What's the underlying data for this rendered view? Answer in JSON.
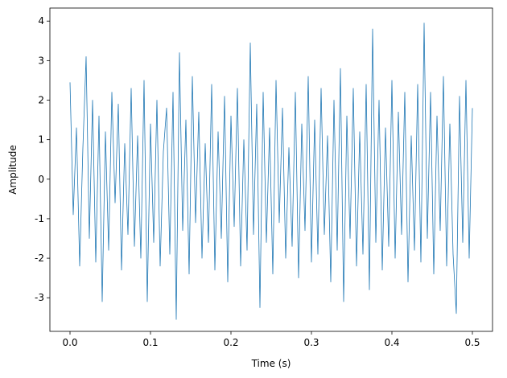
{
  "chart_data": {
    "type": "line",
    "x_label": "Time (s)",
    "y_label": "Amplitude",
    "x": [
      0,
      0.004,
      0.008,
      0.012,
      0.016,
      0.02,
      0.024,
      0.028,
      0.032,
      0.036,
      0.04,
      0.044,
      0.048,
      0.052,
      0.056,
      0.06,
      0.064,
      0.068,
      0.072,
      0.076,
      0.08,
      0.084,
      0.088,
      0.092,
      0.096,
      0.1,
      0.104,
      0.108,
      0.112,
      0.116,
      0.12,
      0.124,
      0.128,
      0.132,
      0.136,
      0.14,
      0.144,
      0.148,
      0.152,
      0.156,
      0.16,
      0.164,
      0.168,
      0.172,
      0.176,
      0.18,
      0.184,
      0.188,
      0.192,
      0.196,
      0.2,
      0.204,
      0.208,
      0.212,
      0.216,
      0.22,
      0.224,
      0.228,
      0.232,
      0.236,
      0.24,
      0.244,
      0.248,
      0.252,
      0.256,
      0.26,
      0.264,
      0.268,
      0.272,
      0.276,
      0.28,
      0.284,
      0.288,
      0.292,
      0.296,
      0.3,
      0.304,
      0.308,
      0.312,
      0.316,
      0.32,
      0.324,
      0.328,
      0.332,
      0.336,
      0.34,
      0.344,
      0.348,
      0.352,
      0.356,
      0.36,
      0.364,
      0.368,
      0.372,
      0.376,
      0.38,
      0.384,
      0.388,
      0.392,
      0.396,
      0.4,
      0.404,
      0.408,
      0.412,
      0.416,
      0.42,
      0.424,
      0.428,
      0.432,
      0.436,
      0.44,
      0.444,
      0.448,
      0.452,
      0.456,
      0.46,
      0.464,
      0.468,
      0.472,
      0.476,
      0.48,
      0.484,
      0.488,
      0.492,
      0.496,
      0.5
    ],
    "series": [
      {
        "color": "#1f77b4",
        "values": [
          2.45,
          -0.9,
          1.3,
          -2.2,
          0.8,
          3.1,
          -1.5,
          2.0,
          -2.1,
          1.6,
          -3.1,
          1.2,
          -1.8,
          2.2,
          -0.6,
          1.9,
          -2.3,
          0.9,
          -1.4,
          2.3,
          -1.7,
          1.1,
          -2.0,
          2.5,
          -3.1,
          1.4,
          -1.6,
          2.0,
          -2.2,
          0.7,
          1.8,
          -1.9,
          2.2,
          -3.55,
          3.2,
          -1.3,
          1.5,
          -2.4,
          2.6,
          -1.1,
          1.7,
          -2.0,
          0.9,
          -1.6,
          2.4,
          -2.3,
          1.2,
          -1.5,
          2.1,
          -2.6,
          1.6,
          -1.2,
          2.3,
          -2.2,
          1.0,
          -1.8,
          3.45,
          -1.4,
          1.9,
          -3.25,
          2.2,
          -1.6,
          1.3,
          -2.4,
          2.5,
          -1.1,
          1.8,
          -2.0,
          0.8,
          -1.7,
          2.2,
          -2.5,
          1.4,
          -1.3,
          2.6,
          -2.1,
          1.5,
          -1.9,
          2.3,
          -1.4,
          1.1,
          -2.6,
          2.0,
          -1.8,
          2.8,
          -3.1,
          1.6,
          -1.5,
          2.3,
          -2.2,
          1.2,
          -1.9,
          2.4,
          -2.8,
          3.8,
          -1.6,
          2.0,
          -2.3,
          1.3,
          -1.7,
          2.5,
          -2.0,
          1.7,
          -1.4,
          2.2,
          -2.6,
          1.1,
          -1.8,
          2.4,
          -2.1,
          3.95,
          -1.5,
          2.2,
          -2.4,
          1.6,
          -1.3,
          2.6,
          -2.2,
          1.4,
          -1.9,
          -3.4,
          2.1,
          -1.6,
          2.5,
          -2.0,
          1.8
        ]
      }
    ],
    "xlim": [
      -0.025,
      0.525
    ],
    "ylim": [
      -3.85,
      4.33
    ],
    "xticks": [
      {
        "value": 0,
        "label": "0.0"
      },
      0.1,
      0.2,
      0.3,
      0.4,
      0.5
    ],
    "yticks": [
      -3,
      -2,
      -1,
      0,
      1,
      2,
      3,
      4
    ]
  }
}
